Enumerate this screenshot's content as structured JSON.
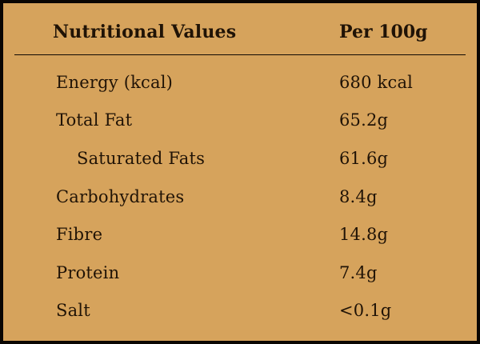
{
  "colors": {
    "background": "#d6a35c",
    "text": "#201306",
    "border": "#0a0602"
  },
  "table": {
    "header": {
      "label": "Nutritional Values",
      "value": "Per 100g"
    },
    "rows": [
      {
        "label": "Energy (kcal)",
        "value": "680 kcal"
      },
      {
        "label": "Total Fat",
        "value": "65.2g"
      },
      {
        "label": "Saturated Fats",
        "value": "61.6g"
      },
      {
        "label": "Carbohydrates",
        "value": "8.4g"
      },
      {
        "label": "Fibre",
        "value": "14.8g"
      },
      {
        "label": "Protein",
        "value": "7.4g"
      },
      {
        "label": "Salt",
        "value": "<0.1g"
      }
    ]
  }
}
